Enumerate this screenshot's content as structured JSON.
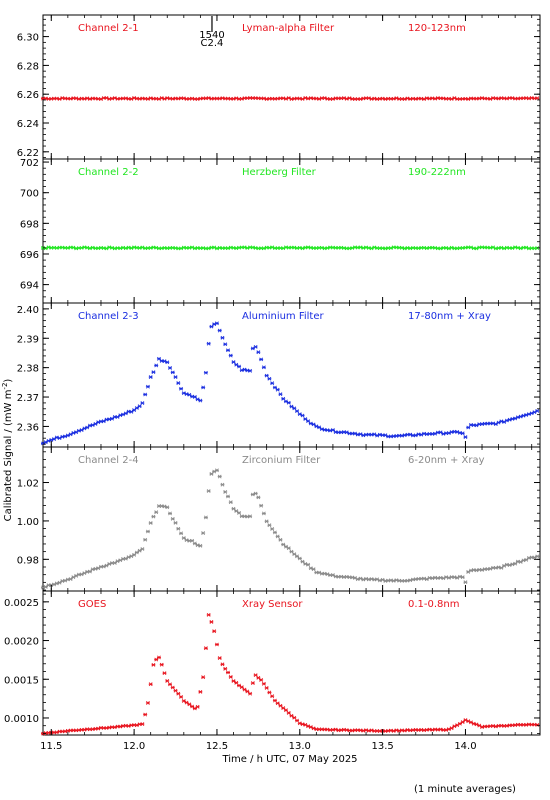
{
  "chart_data": {
    "type": "scatter",
    "xlabel": "Time / h UTC, 07 May 2025",
    "ylabel": "Calibrated Signal / (mW m",
    "ylabel_sup": "-2",
    "ylabel_close": ")",
    "footnote": "(1 minute averages)",
    "xlim": [
      11.45,
      14.45
    ],
    "xticks": [
      11.5,
      12.0,
      12.5,
      13.0,
      13.5,
      14.0
    ],
    "xtick_labels": [
      "11.5",
      "12.0",
      "12.5",
      "13.0",
      "13.5",
      "14.0"
    ],
    "marker": {
      "time": 12.47,
      "label_top": "1540",
      "label_bottom": "C2.4"
    },
    "panels": [
      {
        "channel": "Channel 2-1",
        "filter": "Lyman-alpha Filter",
        "band": "120-123nm",
        "color": "#e8141e",
        "ylim": [
          6.215,
          6.315
        ],
        "yticks": [
          6.22,
          6.24,
          6.26,
          6.28,
          6.3
        ],
        "ytick_labels": [
          "6.22",
          "6.24",
          "6.26",
          "6.28",
          "6.30"
        ],
        "profile": "flat",
        "base": 6.257,
        "noise": 0.0004
      },
      {
        "channel": "Channel 2-2",
        "filter": "Herzberg Filter",
        "band": "190-222nm",
        "color": "#22e622",
        "ylim": [
          692.8,
          702.2
        ],
        "yticks": [
          694,
          696,
          698,
          700,
          702
        ],
        "ytick_labels": [
          "694",
          "696",
          "698",
          "700",
          "702"
        ],
        "profile": "flat",
        "base": 696.4,
        "noise": 0.04
      },
      {
        "channel": "Channel 2-3",
        "filter": "Aluminium Filter",
        "band": "17-80nm + Xray",
        "color": "#1a2ee0",
        "ylim": [
          2.353,
          2.402
        ],
        "yticks": [
          2.36,
          2.37,
          2.38,
          2.39,
          2.4
        ],
        "ytick_labels": [
          "2.36",
          "2.37",
          "2.38",
          "2.39",
          "2.40"
        ],
        "profile": "flare",
        "base": 2.3545,
        "scale": 0.0443,
        "noise": 0.0003
      },
      {
        "channel": "Channel 2-4",
        "filter": "Zirconium Filter",
        "band": "6-20nm + Xray",
        "color": "#8a8a8a",
        "ylim": [
          0.9635,
          1.0385
        ],
        "yticks": [
          0.98,
          1.0,
          1.02
        ],
        "ytick_labels": [
          "0.98",
          "1.00",
          "1.02"
        ],
        "profile": "flare",
        "base": 0.9655,
        "scale": 0.0665,
        "noise": 0.0004
      },
      {
        "channel": "GOES",
        "filter": "Xray Sensor",
        "band": "0.1-0.8nm",
        "color": "#e8141e",
        "ylim": [
          0.00078,
          0.00264
        ],
        "yticks": [
          0.001,
          0.0015,
          0.002,
          0.0025
        ],
        "ytick_labels": [
          "0.0010",
          "0.0015",
          "0.0020",
          "0.0025"
        ],
        "profile": "goes",
        "base": 0.0008,
        "scale": 0.0017,
        "noise": 5e-06
      }
    ]
  }
}
